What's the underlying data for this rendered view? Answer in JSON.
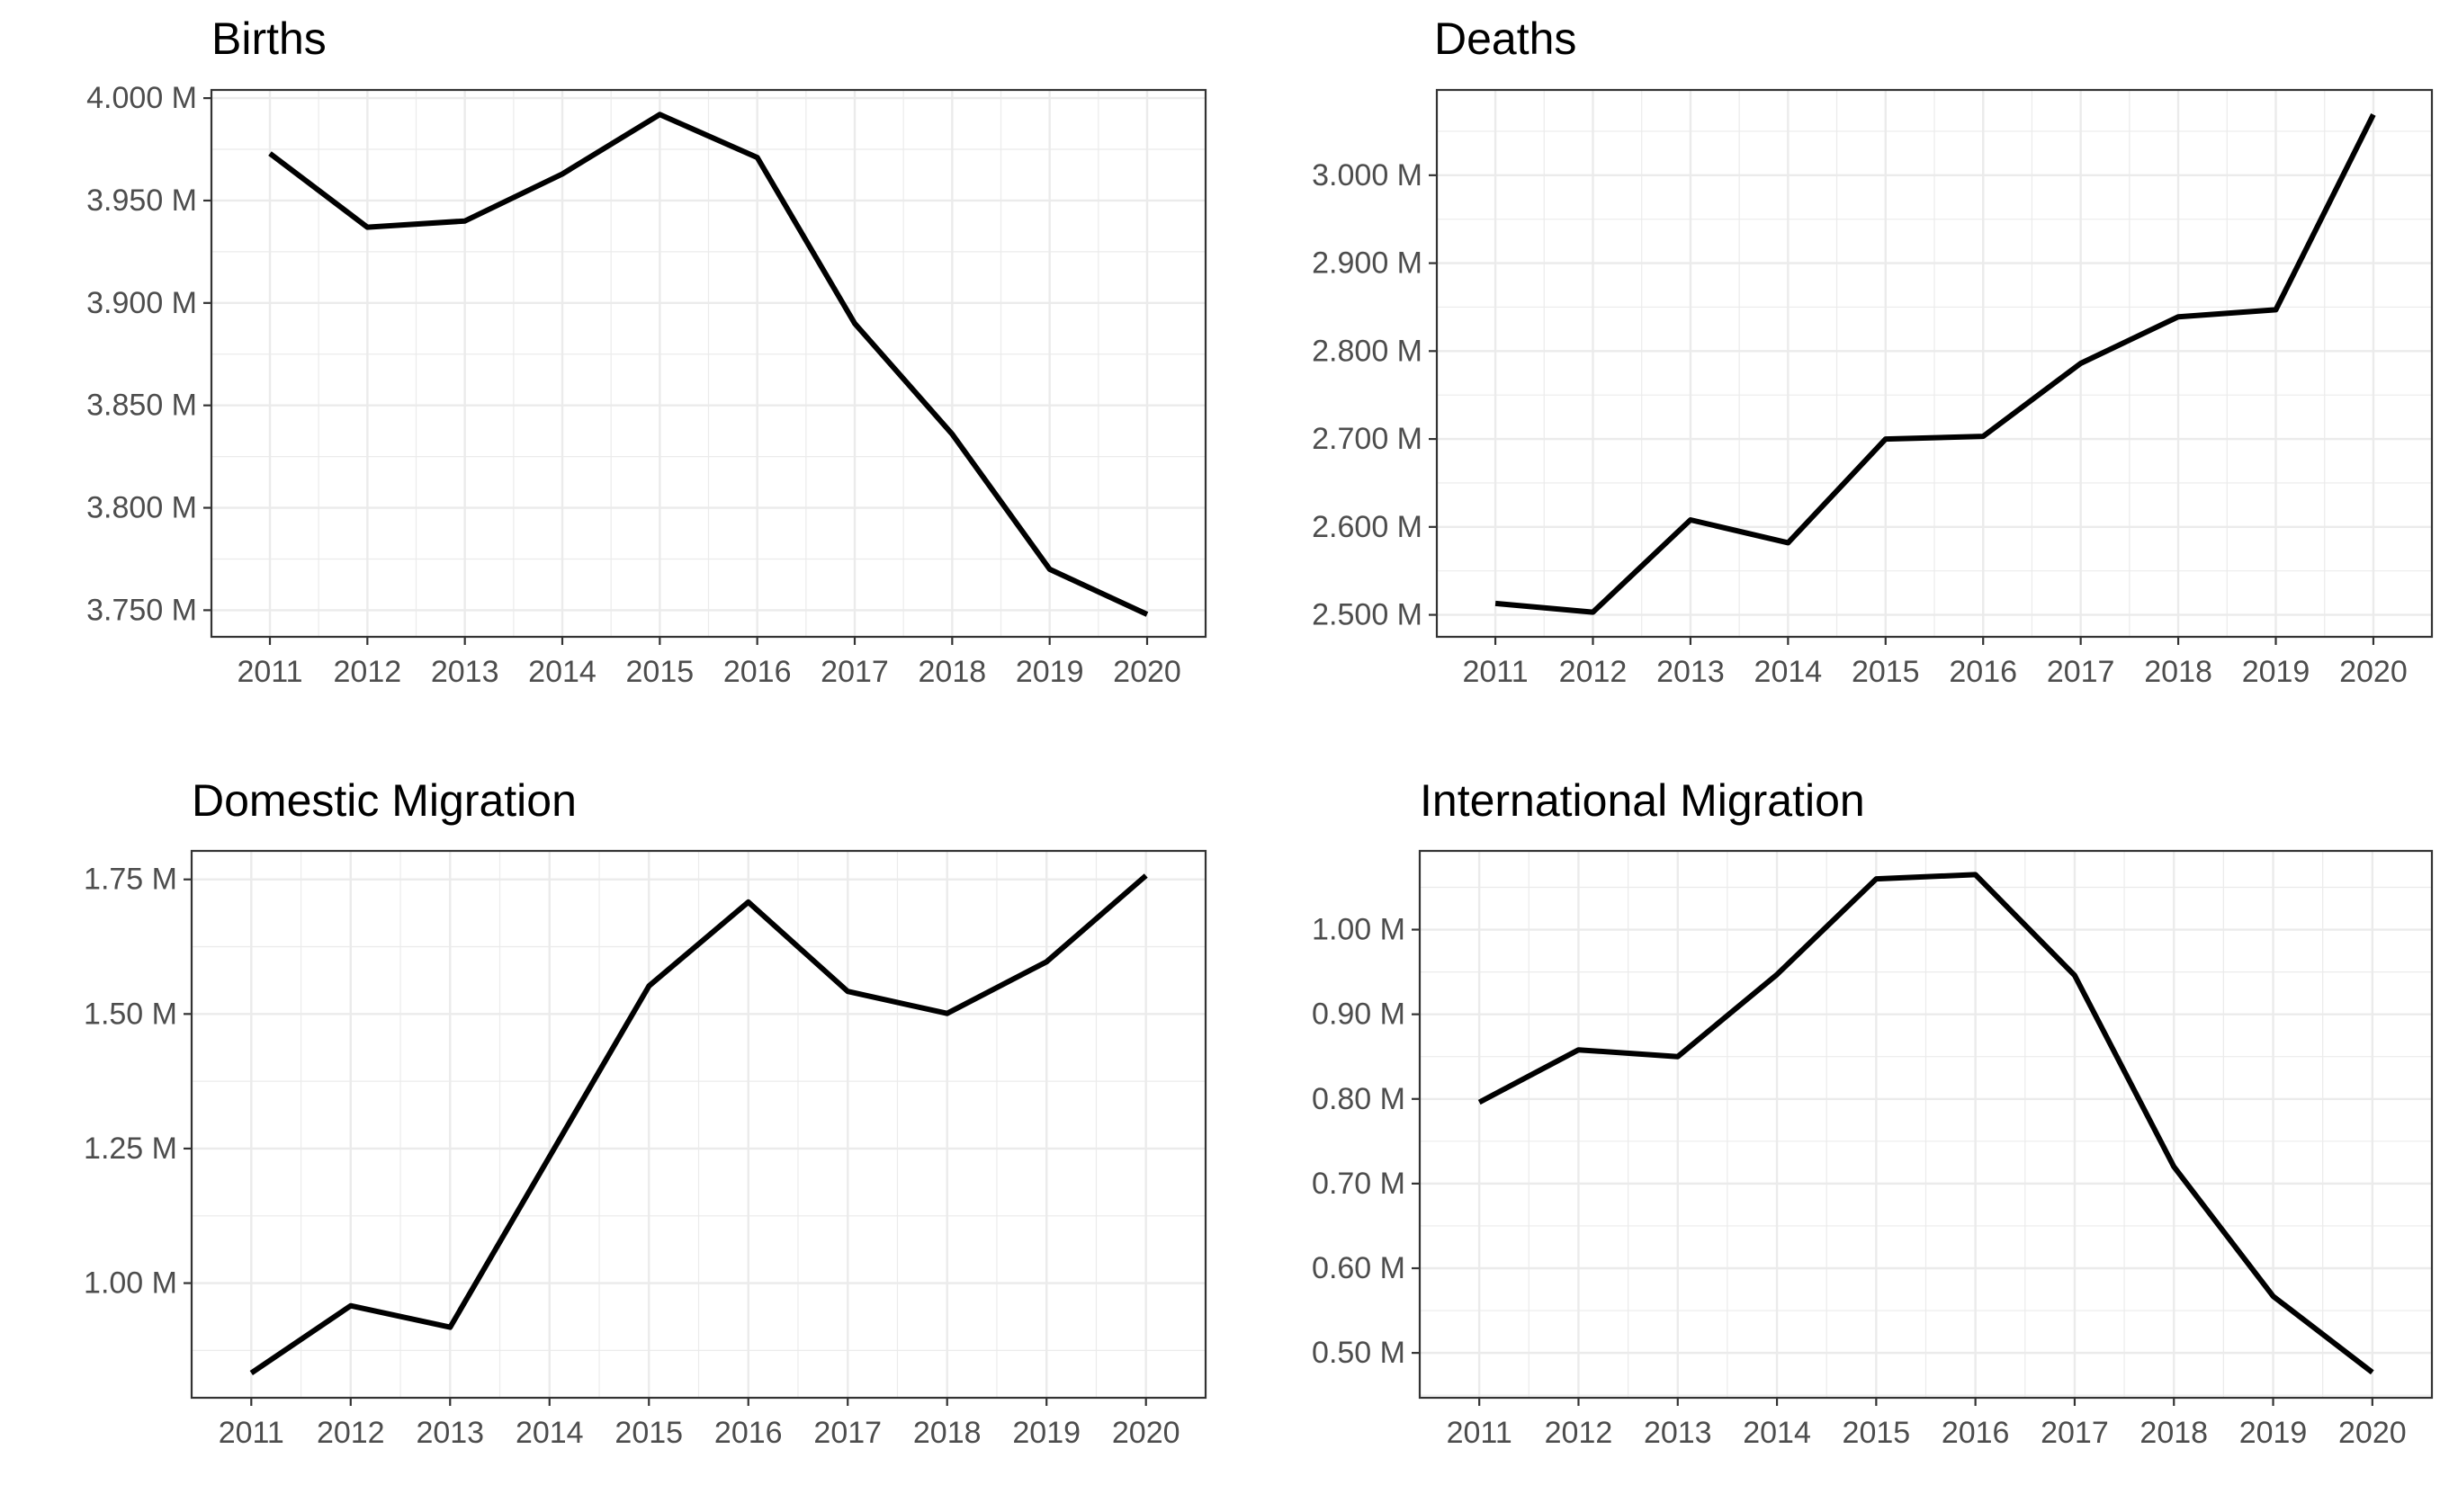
{
  "chart_data": [
    {
      "type": "line",
      "title": "Births",
      "xlabel": "",
      "ylabel": "",
      "x": [
        2011,
        2012,
        2013,
        2014,
        2015,
        2016,
        2017,
        2018,
        2019,
        2020
      ],
      "values": [
        3973000,
        3937000,
        3940000,
        3963000,
        3992000,
        3971000,
        3890000,
        3836000,
        3770000,
        3748000
      ],
      "xlim": [
        2010.4,
        2020.6
      ],
      "ylim": [
        3737000,
        4004000
      ],
      "yticks": [
        {
          "value": 3750000,
          "label": "3.750 M"
        },
        {
          "value": 3800000,
          "label": "3.800 M"
        },
        {
          "value": 3850000,
          "label": "3.850 M"
        },
        {
          "value": 3900000,
          "label": "3.900 M"
        },
        {
          "value": 3950000,
          "label": "3.950 M"
        },
        {
          "value": 4000000,
          "label": "4.000 M"
        }
      ],
      "xticks": [
        {
          "value": 2011,
          "label": "2011"
        },
        {
          "value": 2012,
          "label": "2012"
        },
        {
          "value": 2013,
          "label": "2013"
        },
        {
          "value": 2014,
          "label": "2014"
        },
        {
          "value": 2015,
          "label": "2015"
        },
        {
          "value": 2016,
          "label": "2016"
        },
        {
          "value": 2017,
          "label": "2017"
        },
        {
          "value": 2018,
          "label": "2018"
        },
        {
          "value": 2019,
          "label": "2019"
        },
        {
          "value": 2020,
          "label": "2020"
        }
      ],
      "grid": true,
      "line_color": "#000000"
    },
    {
      "type": "line",
      "title": "Deaths",
      "xlabel": "",
      "ylabel": "",
      "x": [
        2011,
        2012,
        2013,
        2014,
        2015,
        2016,
        2017,
        2018,
        2019,
        2020
      ],
      "values": [
        2513000,
        2503000,
        2608000,
        2582000,
        2700000,
        2703000,
        2786000,
        2839000,
        2847000,
        3069000
      ],
      "xlim": [
        2010.4,
        2020.6
      ],
      "ylim": [
        2475000,
        3097000
      ],
      "yticks": [
        {
          "value": 2500000,
          "label": "2.500 M"
        },
        {
          "value": 2600000,
          "label": "2.600 M"
        },
        {
          "value": 2700000,
          "label": "2.700 M"
        },
        {
          "value": 2800000,
          "label": "2.800 M"
        },
        {
          "value": 2900000,
          "label": "2.900 M"
        },
        {
          "value": 3000000,
          "label": "3.000 M"
        }
      ],
      "xticks": [
        {
          "value": 2011,
          "label": "2011"
        },
        {
          "value": 2012,
          "label": "2012"
        },
        {
          "value": 2013,
          "label": "2013"
        },
        {
          "value": 2014,
          "label": "2014"
        },
        {
          "value": 2015,
          "label": "2015"
        },
        {
          "value": 2016,
          "label": "2016"
        },
        {
          "value": 2017,
          "label": "2017"
        },
        {
          "value": 2018,
          "label": "2018"
        },
        {
          "value": 2019,
          "label": "2019"
        },
        {
          "value": 2020,
          "label": "2020"
        }
      ],
      "grid": true,
      "line_color": "#000000"
    },
    {
      "type": "line",
      "title": "Domestic Migration",
      "xlabel": "",
      "ylabel": "",
      "x": [
        2011,
        2012,
        2013,
        2014,
        2015,
        2016,
        2017,
        2018,
        2019,
        2020
      ],
      "values": [
        833000,
        958000,
        918000,
        1235000,
        1552000,
        1708000,
        1542000,
        1501000,
        1597000,
        1757000
      ],
      "xlim": [
        2010.4,
        2020.6
      ],
      "ylim": [
        787000,
        1803000
      ],
      "yticks": [
        {
          "value": 1000000,
          "label": "1.00 M"
        },
        {
          "value": 1250000,
          "label": "1.25 M"
        },
        {
          "value": 1500000,
          "label": "1.50 M"
        },
        {
          "value": 1750000,
          "label": "1.75 M"
        }
      ],
      "xticks": [
        {
          "value": 2011,
          "label": "2011"
        },
        {
          "value": 2012,
          "label": "2012"
        },
        {
          "value": 2013,
          "label": "2013"
        },
        {
          "value": 2014,
          "label": "2014"
        },
        {
          "value": 2015,
          "label": "2015"
        },
        {
          "value": 2016,
          "label": "2016"
        },
        {
          "value": 2017,
          "label": "2017"
        },
        {
          "value": 2018,
          "label": "2018"
        },
        {
          "value": 2019,
          "label": "2019"
        },
        {
          "value": 2020,
          "label": "2020"
        }
      ],
      "grid": true,
      "line_color": "#000000"
    },
    {
      "type": "line",
      "title": "International Migration",
      "xlabel": "",
      "ylabel": "",
      "x": [
        2011,
        2012,
        2013,
        2014,
        2015,
        2016,
        2017,
        2018,
        2019,
        2020
      ],
      "values": [
        796000,
        858000,
        850000,
        947000,
        1060000,
        1065000,
        946000,
        720000,
        567000,
        477000
      ],
      "xlim": [
        2010.4,
        2020.6
      ],
      "ylim": [
        447000,
        1093000
      ],
      "yticks": [
        {
          "value": 500000,
          "label": "0.50 M"
        },
        {
          "value": 600000,
          "label": "0.60 M"
        },
        {
          "value": 700000,
          "label": "0.70 M"
        },
        {
          "value": 800000,
          "label": "0.80 M"
        },
        {
          "value": 900000,
          "label": "0.90 M"
        },
        {
          "value": 1000000,
          "label": "1.00 M"
        }
      ],
      "xticks": [
        {
          "value": 2011,
          "label": "2011"
        },
        {
          "value": 2012,
          "label": "2012"
        },
        {
          "value": 2013,
          "label": "2013"
        },
        {
          "value": 2014,
          "label": "2014"
        },
        {
          "value": 2015,
          "label": "2015"
        },
        {
          "value": 2016,
          "label": "2016"
        },
        {
          "value": 2017,
          "label": "2017"
        },
        {
          "value": 2018,
          "label": "2018"
        },
        {
          "value": 2019,
          "label": "2019"
        },
        {
          "value": 2020,
          "label": "2020"
        }
      ],
      "grid": true,
      "line_color": "#000000"
    }
  ]
}
